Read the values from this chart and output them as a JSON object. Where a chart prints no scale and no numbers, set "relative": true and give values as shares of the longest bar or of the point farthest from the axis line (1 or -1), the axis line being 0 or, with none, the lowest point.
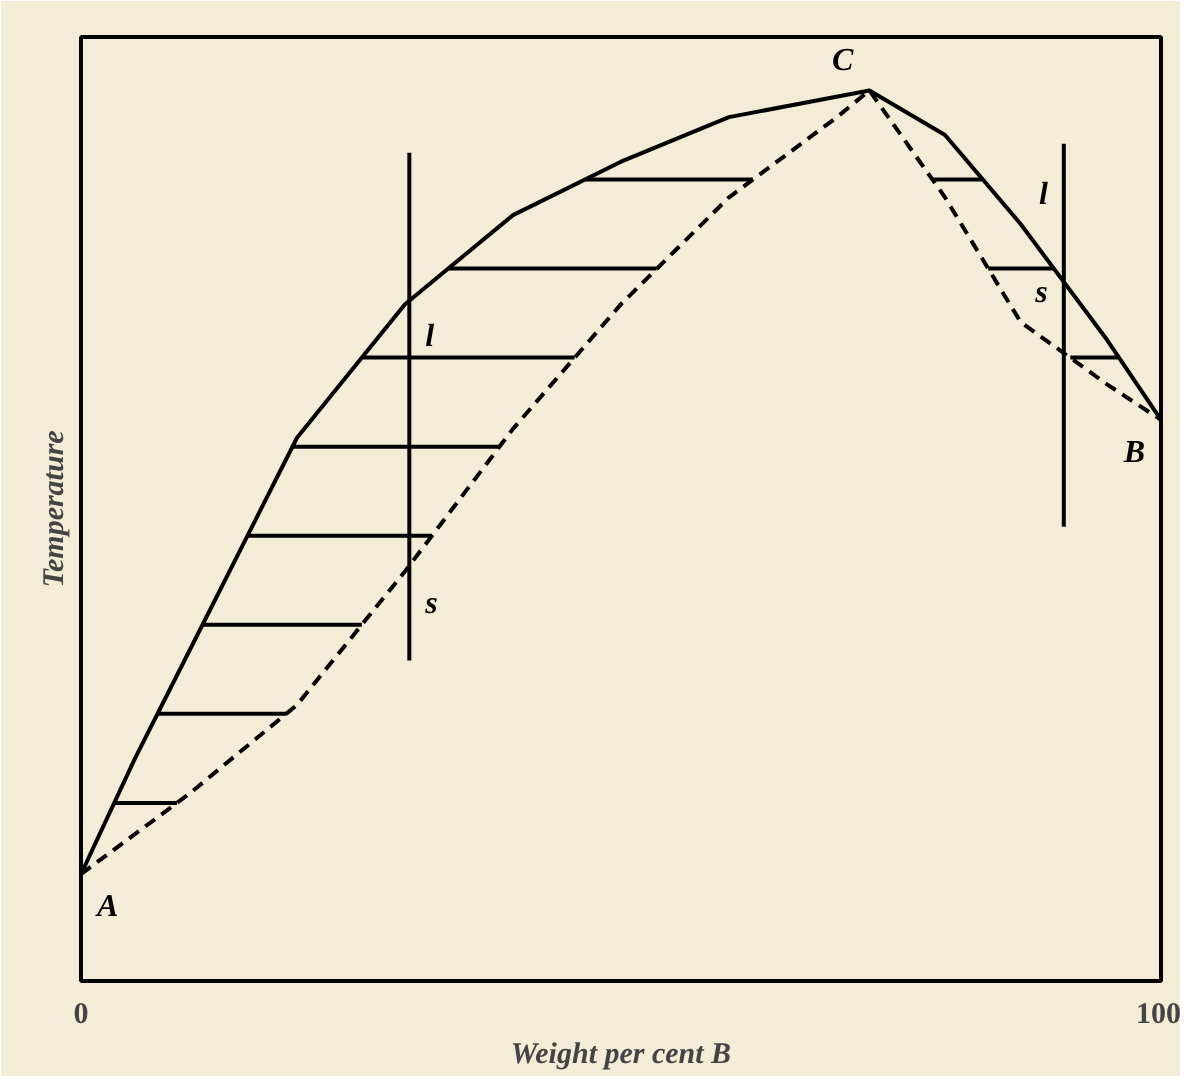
{
  "chart_data": {
    "type": "line",
    "relative": true,
    "xlabel": "Weight per cent B",
    "ylabel": "Temperature",
    "xlim": [
      0,
      100
    ],
    "xticks": [
      0,
      100
    ],
    "marker": "none",
    "series": [
      {
        "line_style": "solid",
        "color": "#000000",
        "x": [
          0,
          5,
          10,
          15,
          20,
          30,
          40,
          50,
          60,
          73,
          80,
          87,
          95,
          100
        ],
        "values": [
          0.12,
          0.25,
          0.37,
          0.49,
          0.61,
          0.76,
          0.86,
          0.92,
          0.97,
          1.0,
          0.95,
          0.85,
          0.72,
          0.63
        ]
      },
      {
        "line_style": "dashed",
        "color": "#000000",
        "x": [
          0,
          10,
          20,
          30,
          40,
          50,
          60,
          70,
          73,
          80,
          87,
          95,
          100
        ],
        "values": [
          0.12,
          0.21,
          0.31,
          0.46,
          0.62,
          0.76,
          0.88,
          0.97,
          1.0,
          0.88,
          0.74,
          0.67,
          0.63
        ]
      },
      {
        "line_style": "solid",
        "color": "#000000",
        "x": [
          3.1,
          8.9
        ],
        "values": [
          0.2,
          0.2
        ]
      },
      {
        "line_style": "solid",
        "color": "#000000",
        "x": [
          7.1,
          19
        ],
        "values": [
          0.3,
          0.3
        ]
      },
      {
        "line_style": "solid",
        "color": "#000000",
        "x": [
          11.3,
          26
        ],
        "values": [
          0.4,
          0.4
        ]
      },
      {
        "line_style": "solid",
        "color": "#000000",
        "x": [
          15.4,
          32.5
        ],
        "values": [
          0.5,
          0.5
        ]
      },
      {
        "line_style": "solid",
        "color": "#000000",
        "x": [
          19.6,
          38.8
        ],
        "values": [
          0.6,
          0.6
        ]
      },
      {
        "line_style": "solid",
        "color": "#000000",
        "x": [
          26,
          45.7
        ],
        "values": [
          0.7,
          0.7
        ]
      },
      {
        "line_style": "solid",
        "color": "#000000",
        "x": [
          34,
          53.3
        ],
        "values": [
          0.8,
          0.8
        ]
      },
      {
        "line_style": "solid",
        "color": "#000000",
        "x": [
          46.7,
          62.2
        ],
        "values": [
          0.9,
          0.9
        ]
      },
      {
        "line_style": "solid",
        "color": "#000000",
        "x": [
          78.8,
          83.5
        ],
        "values": [
          0.9,
          0.9
        ]
      },
      {
        "line_style": "solid",
        "color": "#000000",
        "x": [
          84,
          90.1
        ],
        "values": [
          0.8,
          0.8
        ]
      },
      {
        "line_style": "solid",
        "color": "#000000",
        "x": [
          91.6,
          96.1
        ],
        "values": [
          0.7,
          0.7
        ]
      },
      {
        "line_style": "solid",
        "color": "#000000",
        "x": [
          30.4,
          30.4
        ],
        "values": [
          0.93,
          0.36
        ]
      },
      {
        "line_style": "solid",
        "color": "#000000",
        "x": [
          91,
          91
        ],
        "values": [
          0.94,
          0.51
        ]
      }
    ],
    "annotations": [
      {
        "text": "A",
        "x": 0,
        "y": 0.12
      },
      {
        "text": "B",
        "x": 100,
        "y": 0.63
      },
      {
        "text": "C",
        "x": 73,
        "y": 1.0
      },
      {
        "text": "l",
        "x": 30.4,
        "y": 0.76
      },
      {
        "text": "s",
        "x": 30.4,
        "y": 0.46
      },
      {
        "text": "l",
        "x": 91,
        "y": 0.85
      },
      {
        "text": "s",
        "x": 91,
        "y": 0.74
      }
    ]
  }
}
